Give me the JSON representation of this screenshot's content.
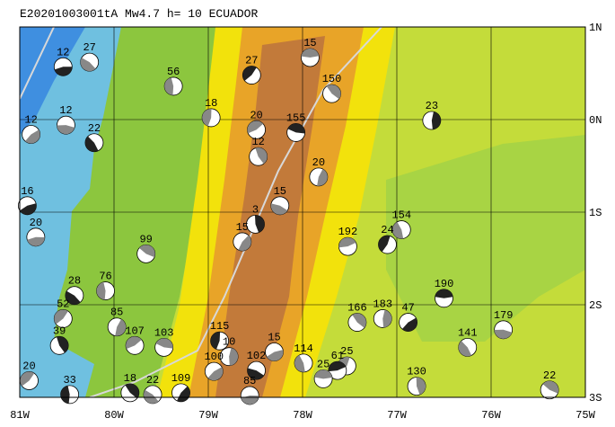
{
  "title": "E20201003001tA Mw4.7 h= 10 ECUADOR",
  "xlim": [
    -81,
    -75
  ],
  "ylim": [
    -3,
    1
  ],
  "xticks": [
    {
      "value": -81,
      "label": "81W"
    },
    {
      "value": -80,
      "label": "80W"
    },
    {
      "value": -79,
      "label": "79W"
    },
    {
      "value": -78,
      "label": "78W"
    },
    {
      "value": -77,
      "label": "77W"
    },
    {
      "value": -76,
      "label": "76W"
    },
    {
      "value": -75,
      "label": "75W"
    }
  ],
  "yticks": [
    {
      "value": 1,
      "label": "1N"
    },
    {
      "value": 0,
      "label": "0N"
    },
    {
      "value": -1,
      "label": "1S"
    },
    {
      "value": -2,
      "label": "2S"
    },
    {
      "value": -3,
      "label": "3S"
    }
  ],
  "events": [
    {
      "lon": -80.54,
      "lat": 0.57,
      "depth": 12
    },
    {
      "lon": -80.26,
      "lat": 0.62,
      "depth": 27
    },
    {
      "lon": -79.37,
      "lat": 0.36,
      "depth": 56
    },
    {
      "lon": -78.54,
      "lat": 0.48,
      "depth": 27
    },
    {
      "lon": -77.92,
      "lat": 0.67,
      "depth": 15
    },
    {
      "lon": -77.69,
      "lat": 0.28,
      "depth": 150
    },
    {
      "lon": -76.63,
      "lat": -0.01,
      "depth": 23
    },
    {
      "lon": -80.88,
      "lat": -0.16,
      "depth": 12
    },
    {
      "lon": -80.51,
      "lat": -0.06,
      "depth": 12
    },
    {
      "lon": -80.21,
      "lat": -0.25,
      "depth": 22
    },
    {
      "lon": -78.97,
      "lat": 0.02,
      "depth": 18
    },
    {
      "lon": -78.49,
      "lat": -0.11,
      "depth": 20
    },
    {
      "lon": -78.07,
      "lat": -0.14,
      "depth": 155
    },
    {
      "lon": -78.47,
      "lat": -0.4,
      "depth": 12
    },
    {
      "lon": -77.83,
      "lat": -0.62,
      "depth": 20
    },
    {
      "lon": -80.92,
      "lat": -0.93,
      "depth": 16
    },
    {
      "lon": -78.24,
      "lat": -0.93,
      "depth": 15
    },
    {
      "lon": -76.95,
      "lat": -1.19,
      "depth": 154
    },
    {
      "lon": -77.1,
      "lat": -1.35,
      "depth": 24
    },
    {
      "lon": -77.52,
      "lat": -1.37,
      "depth": 192
    },
    {
      "lon": -79.66,
      "lat": -1.45,
      "depth": 99
    },
    {
      "lon": -78.5,
      "lat": -1.13,
      "depth": 3
    },
    {
      "lon": -78.64,
      "lat": -1.32,
      "depth": 15
    },
    {
      "lon": -80.83,
      "lat": -1.27,
      "depth": 20
    },
    {
      "lon": -80.42,
      "lat": -1.9,
      "depth": 28
    },
    {
      "lon": -80.09,
      "lat": -1.85,
      "depth": 76
    },
    {
      "lon": -80.54,
      "lat": -2.15,
      "depth": 52
    },
    {
      "lon": -76.5,
      "lat": -1.93,
      "depth": 190
    },
    {
      "lon": -77.42,
      "lat": -2.19,
      "depth": 166
    },
    {
      "lon": -77.15,
      "lat": -2.15,
      "depth": 183
    },
    {
      "lon": -76.88,
      "lat": -2.19,
      "depth": 47
    },
    {
      "lon": -75.87,
      "lat": -2.27,
      "depth": 179
    },
    {
      "lon": -76.25,
      "lat": -2.46,
      "depth": 141
    },
    {
      "lon": -78.88,
      "lat": -2.39,
      "depth": 115
    },
    {
      "lon": -79.78,
      "lat": -2.44,
      "depth": 107
    },
    {
      "lon": -79.47,
      "lat": -2.46,
      "depth": 103
    },
    {
      "lon": -80.58,
      "lat": -2.44,
      "depth": 39
    },
    {
      "lon": -79.97,
      "lat": -2.24,
      "depth": 85
    },
    {
      "lon": -78.3,
      "lat": -2.51,
      "depth": 15
    },
    {
      "lon": -78.49,
      "lat": -2.71,
      "depth": 102
    },
    {
      "lon": -77.99,
      "lat": -2.63,
      "depth": 114
    },
    {
      "lon": -77.53,
      "lat": -2.66,
      "depth": 25
    },
    {
      "lon": -77.63,
      "lat": -2.71,
      "depth": 61
    },
    {
      "lon": -75.38,
      "lat": -2.92,
      "depth": 22
    },
    {
      "lon": -76.79,
      "lat": -2.88,
      "depth": 130
    },
    {
      "lon": -79.29,
      "lat": -2.95,
      "depth": 109
    },
    {
      "lon": -78.56,
      "lat": -2.98,
      "depth": 85
    },
    {
      "lon": -79.59,
      "lat": -2.97,
      "depth": 22
    },
    {
      "lon": -80.47,
      "lat": -2.97,
      "depth": 33
    },
    {
      "lon": -80.9,
      "lat": -2.82,
      "depth": 20
    },
    {
      "lon": -77.78,
      "lat": -2.8,
      "depth": 25
    },
    {
      "lon": -79.83,
      "lat": -2.95,
      "depth": 18
    },
    {
      "lon": -78.78,
      "lat": -2.56,
      "depth": 10
    },
    {
      "lon": -78.94,
      "lat": -2.72,
      "depth": 100
    }
  ]
}
